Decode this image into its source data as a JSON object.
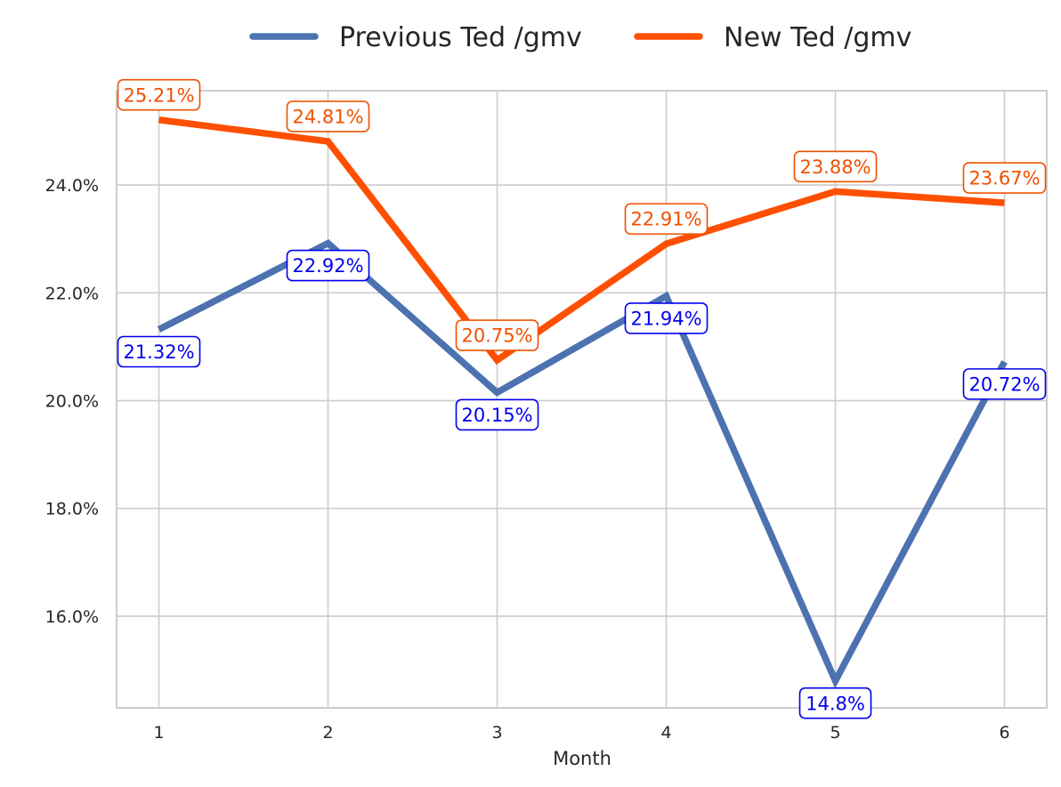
{
  "chart_data": {
    "type": "line",
    "title": "",
    "xlabel": "Month",
    "ylabel": "",
    "x": [
      1,
      2,
      3,
      4,
      5,
      6
    ],
    "x_tick_labels": [
      "1",
      "2",
      "3",
      "4",
      "5",
      "6"
    ],
    "xlim": [
      0.75,
      6.25
    ],
    "ylim": [
      14.3,
      25.75
    ],
    "y_ticks": [
      16,
      18,
      20,
      22,
      24
    ],
    "y_tick_labels": [
      "16.0%",
      "18.0%",
      "20.0%",
      "22.0%",
      "24.0%"
    ],
    "grid": true,
    "legend_position": "top-center",
    "series": [
      {
        "name": "Previous Ted /gmv",
        "color": "#4c72b0",
        "label_color": "#0000ee",
        "label_placement": "below",
        "values": [
          21.32,
          22.92,
          20.15,
          21.94,
          14.8,
          20.72
        ],
        "labels": [
          "21.32%",
          "22.92%",
          "20.15%",
          "21.94%",
          "14.8%",
          "20.72%"
        ]
      },
      {
        "name": "New Ted /gmv",
        "color": "#ff4f00",
        "label_color": "#f05000",
        "label_placement": "above",
        "values": [
          25.21,
          24.81,
          20.75,
          22.91,
          23.88,
          23.67
        ],
        "labels": [
          "25.21%",
          "24.81%",
          "20.75%",
          "22.91%",
          "23.88%",
          "23.67%"
        ]
      }
    ]
  }
}
